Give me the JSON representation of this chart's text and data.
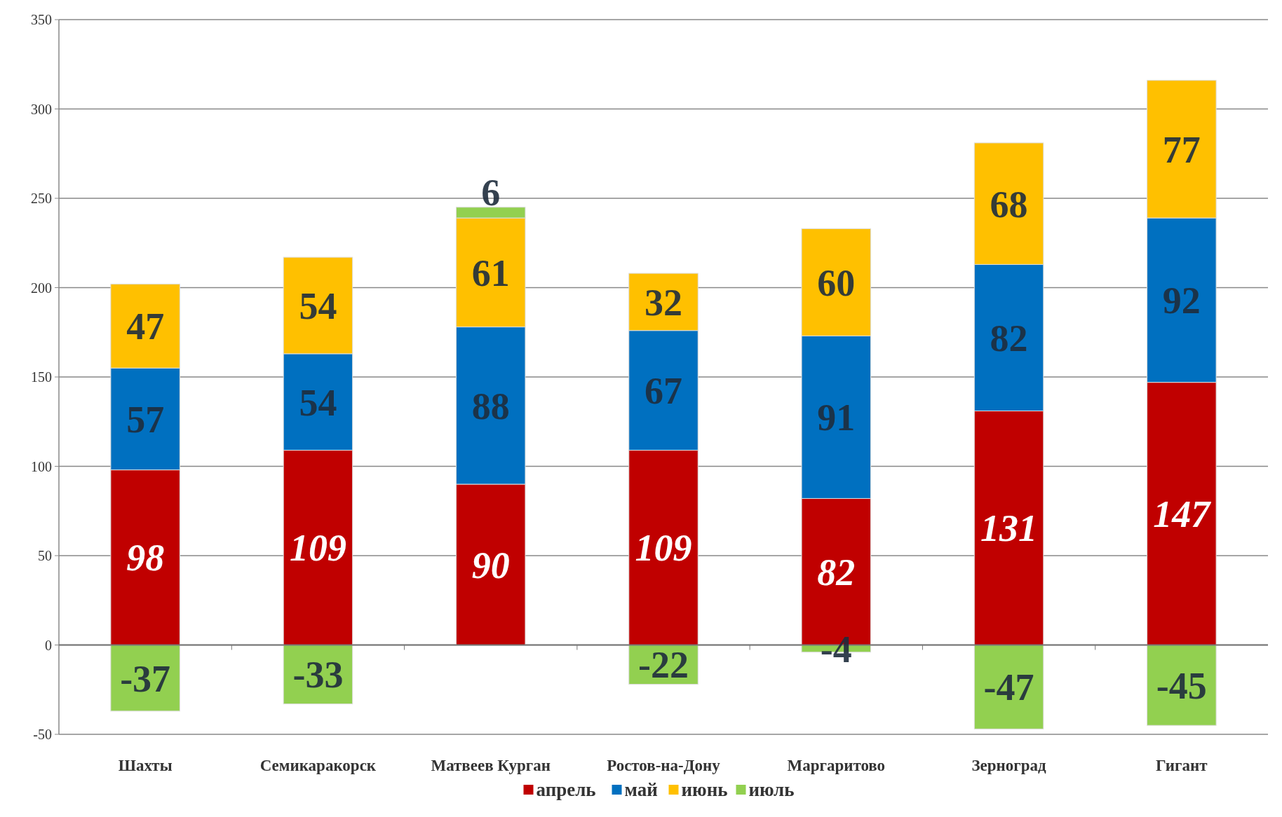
{
  "chart_data": {
    "type": "bar",
    "stacked": true,
    "categories": [
      "Шахты",
      "Семикаракорск",
      "Матвеев Курган",
      "Ростов-на-Дону",
      "Маргаритово",
      "Зерноград",
      "Гигант"
    ],
    "series": [
      {
        "name": "апрель",
        "color": "#c00000",
        "values": [
          98,
          109,
          90,
          109,
          82,
          131,
          147
        ]
      },
      {
        "name": "май",
        "color": "#0070c0",
        "values": [
          57,
          54,
          88,
          67,
          91,
          82,
          92
        ]
      },
      {
        "name": "июнь",
        "color": "#ffc000",
        "values": [
          47,
          54,
          61,
          32,
          60,
          68,
          77
        ]
      },
      {
        "name": "июль",
        "color": "#92d050",
        "values": [
          -37,
          -33,
          6,
          -22,
          -4,
          -47,
          -45
        ]
      }
    ],
    "ylim": [
      -50,
      350
    ],
    "yticks": [
      -50,
      0,
      50,
      100,
      150,
      200,
      250,
      300,
      350
    ],
    "grid": "y",
    "legend": "bottom",
    "data_labels": true
  }
}
